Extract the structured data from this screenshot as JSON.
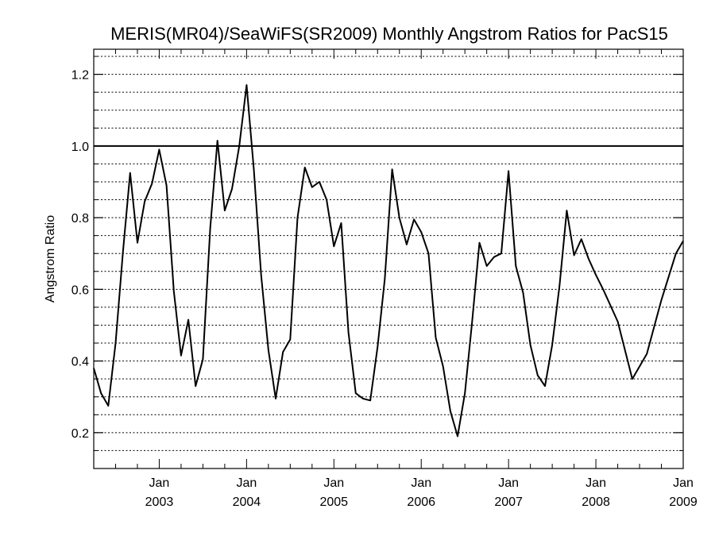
{
  "chart_data": {
    "type": "line",
    "title": "MERIS(MR04)/SeaWiFS(SR2009) Monthly Angstrom Ratios for PacS15",
    "xlabel": "",
    "ylabel": "Angstrom Ratio",
    "xlim": [
      "2002-04",
      "2009-01"
    ],
    "ylim": [
      0.1,
      1.27
    ],
    "y_ticks": [
      {
        "value": 0.2,
        "label": "0.2"
      },
      {
        "value": 0.4,
        "label": "0.4"
      },
      {
        "value": 0.6,
        "label": "0.6"
      },
      {
        "value": 0.8,
        "label": "0.8"
      },
      {
        "value": 1.0,
        "label": "1.0"
      },
      {
        "value": 1.2,
        "label": "1.2"
      }
    ],
    "x_ticks": [
      {
        "date": "2003-01",
        "month": "Jan",
        "year": "2003"
      },
      {
        "date": "2004-01",
        "month": "Jan",
        "year": "2004"
      },
      {
        "date": "2005-01",
        "month": "Jan",
        "year": "2005"
      },
      {
        "date": "2006-01",
        "month": "Jan",
        "year": "2006"
      },
      {
        "date": "2007-01",
        "month": "Jan",
        "year": "2007"
      },
      {
        "date": "2008-01",
        "month": "Jan",
        "year": "2008"
      },
      {
        "date": "2009-01",
        "month": "Jan",
        "year": "2009"
      }
    ],
    "grid": "dotted horizontal every 0.05",
    "reference_line": 1.0,
    "series": [
      {
        "x": [
          "2002-04",
          "2002-05",
          "2002-06",
          "2002-07",
          "2002-08",
          "2002-09",
          "2002-10",
          "2002-11",
          "2002-12",
          "2003-01",
          "2003-02",
          "2003-03",
          "2003-04",
          "2003-05",
          "2003-06",
          "2003-07",
          "2003-08",
          "2003-09",
          "2003-10",
          "2003-11",
          "2003-12",
          "2004-01",
          "2004-02",
          "2004-03",
          "2004-04",
          "2004-05",
          "2004-06",
          "2004-07",
          "2004-08",
          "2004-09",
          "2004-10",
          "2004-11",
          "2004-12",
          "2005-01",
          "2005-02",
          "2005-03",
          "2005-04",
          "2005-05",
          "2005-06",
          "2005-07",
          "2005-08",
          "2005-09",
          "2005-10",
          "2005-11",
          "2005-12",
          "2006-01",
          "2006-02",
          "2006-03",
          "2006-04",
          "2006-05",
          "2006-06",
          "2006-07",
          "2006-08",
          "2006-09",
          "2006-10",
          "2006-11",
          "2006-12",
          "2007-01",
          "2007-02",
          "2007-03",
          "2007-04",
          "2007-05",
          "2007-06",
          "2007-07",
          "2007-08",
          "2007-09",
          "2007-10",
          "2007-11",
          "2007-12",
          "2008-01",
          "2008-02",
          "2008-04",
          "2008-06",
          "2008-08",
          "2008-10",
          "2008-12",
          "2009-01"
        ],
        "values": [
          0.38,
          0.31,
          0.275,
          0.45,
          0.7,
          0.925,
          0.73,
          0.845,
          0.895,
          0.99,
          0.89,
          0.595,
          0.415,
          0.515,
          0.33,
          0.405,
          0.77,
          1.015,
          0.82,
          0.88,
          1.0,
          1.17,
          0.935,
          0.64,
          0.43,
          0.295,
          0.425,
          0.46,
          0.8,
          0.94,
          0.885,
          0.9,
          0.85,
          0.72,
          0.785,
          0.48,
          0.31,
          0.295,
          0.29,
          0.44,
          0.63,
          0.935,
          0.8,
          0.725,
          0.795,
          0.76,
          0.7,
          0.465,
          0.385,
          0.26,
          0.19,
          0.31,
          0.51,
          0.73,
          0.665,
          0.69,
          0.7,
          0.93,
          0.665,
          0.59,
          0.445,
          0.36,
          0.33,
          0.445,
          0.61,
          0.82,
          0.695,
          0.74,
          0.685,
          0.64,
          0.6,
          0.51,
          0.35,
          0.42,
          0.57,
          0.7,
          0.735
        ]
      }
    ]
  }
}
